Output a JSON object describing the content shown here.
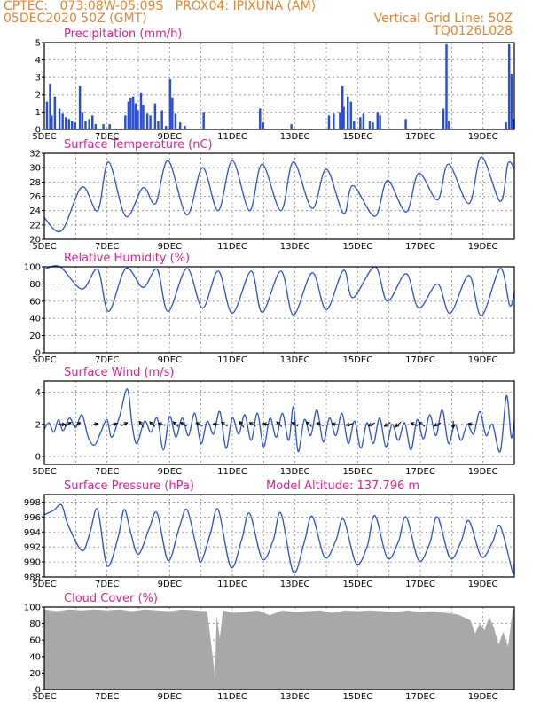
{
  "header": {
    "line1": "CPTEC:   073:08W-05:09S   PROX04: IPIXUNA (AM)",
    "line2": "05DEC2020 50Z (GMT)",
    "grid_line": "Vertical Grid Line: 50Z",
    "code": "TQ0126L028"
  },
  "x_dates": [
    "5DEC",
    "7DEC",
    "9DEC",
    "11DEC",
    "13DEC",
    "15DEC",
    "17DEC",
    "19DEC"
  ],
  "colors": {
    "line": "#2a4fd6",
    "bar": "#2a4fd6",
    "cloud": "#a8a8a8",
    "title": "#e0208c",
    "header": "#e8822c"
  },
  "chart_data": [
    {
      "type": "bar",
      "title": "Precipitation (mm/h)",
      "ylim": [
        0,
        5
      ],
      "yticks": [
        0,
        1,
        2,
        3,
        4,
        5
      ],
      "x_range_days": [
        5,
        20
      ],
      "bars": [
        [
          5.05,
          1.6
        ],
        [
          5.15,
          2.6
        ],
        [
          5.2,
          0.8
        ],
        [
          5.3,
          1.9
        ],
        [
          5.45,
          1.2
        ],
        [
          5.55,
          0.9
        ],
        [
          5.65,
          0.7
        ],
        [
          5.75,
          0.6
        ],
        [
          5.85,
          0.5
        ],
        [
          5.95,
          0.4
        ],
        [
          6.1,
          2.5
        ],
        [
          6.18,
          1.0
        ],
        [
          6.28,
          0.5
        ],
        [
          6.4,
          0.6
        ],
        [
          6.5,
          0.8
        ],
        [
          6.6,
          0.3
        ],
        [
          6.85,
          0.3
        ],
        [
          7.05,
          0.3
        ],
        [
          7.55,
          0.8
        ],
        [
          7.65,
          1.6
        ],
        [
          7.72,
          1.8
        ],
        [
          7.8,
          1.9
        ],
        [
          7.88,
          1.5
        ],
        [
          7.95,
          1.1
        ],
        [
          8.05,
          2.1
        ],
        [
          8.12,
          1.4
        ],
        [
          8.25,
          0.9
        ],
        [
          8.35,
          0.8
        ],
        [
          8.5,
          1.5
        ],
        [
          8.6,
          0.5
        ],
        [
          8.72,
          1.1
        ],
        [
          8.85,
          0.2
        ],
        [
          8.98,
          2.9
        ],
        [
          9.05,
          1.8
        ],
        [
          9.15,
          0.9
        ],
        [
          9.3,
          0.4
        ],
        [
          9.45,
          0.2
        ],
        [
          10.05,
          1.0
        ],
        [
          11.85,
          1.2
        ],
        [
          11.95,
          0.4
        ],
        [
          12.85,
          0.3
        ],
        [
          14.05,
          0.8
        ],
        [
          14.2,
          0.9
        ],
        [
          14.4,
          1.0
        ],
        [
          14.48,
          2.5
        ],
        [
          14.52,
          1.3
        ],
        [
          14.65,
          1.9
        ],
        [
          14.75,
          1.6
        ],
        [
          14.85,
          0.5
        ],
        [
          15.05,
          0.7
        ],
        [
          15.15,
          0.9
        ],
        [
          15.35,
          0.5
        ],
        [
          15.45,
          0.4
        ],
        [
          15.6,
          1.0
        ],
        [
          15.68,
          0.8
        ],
        [
          16.5,
          0.6
        ],
        [
          17.7,
          1.2
        ],
        [
          17.8,
          4.9
        ],
        [
          17.88,
          0.5
        ],
        [
          19.7,
          0.4
        ],
        [
          19.8,
          4.9
        ],
        [
          19.88,
          3.2
        ],
        [
          19.95,
          0.6
        ]
      ]
    },
    {
      "type": "line",
      "title": "Surface Temperature (nC)",
      "ylim": [
        20,
        32
      ],
      "yticks": [
        20,
        22,
        24,
        26,
        28,
        30,
        32
      ],
      "peaks": [
        [
          5.0,
          23.0
        ],
        [
          5.55,
          21.2
        ],
        [
          6.2,
          27.3
        ],
        [
          6.7,
          24.0
        ],
        [
          7.05,
          30.8
        ],
        [
          7.6,
          23.2
        ],
        [
          8.15,
          27.2
        ],
        [
          8.55,
          25.0
        ],
        [
          8.95,
          31.0
        ],
        [
          9.55,
          23.4
        ],
        [
          10.05,
          30.0
        ],
        [
          10.55,
          24.0
        ],
        [
          11.0,
          31.0
        ],
        [
          11.55,
          24.0
        ],
        [
          11.95,
          30.5
        ],
        [
          12.55,
          24.0
        ],
        [
          12.95,
          30.8
        ],
        [
          13.55,
          24.3
        ],
        [
          14.0,
          29.8
        ],
        [
          14.55,
          23.6
        ],
        [
          14.85,
          27.5
        ],
        [
          15.55,
          23.2
        ],
        [
          15.95,
          28.2
        ],
        [
          16.55,
          23.8
        ],
        [
          16.95,
          29.2
        ],
        [
          17.55,
          25.5
        ],
        [
          17.9,
          30.5
        ],
        [
          18.55,
          25.0
        ],
        [
          18.95,
          31.5
        ],
        [
          19.55,
          25.3
        ],
        [
          19.8,
          30.6
        ],
        [
          20.0,
          29.8
        ]
      ]
    },
    {
      "type": "line",
      "title": "Relative Humidity (%)",
      "ylim": [
        0,
        100
      ],
      "yticks": [
        0,
        20,
        40,
        60,
        80,
        100
      ],
      "peaks": [
        [
          5.0,
          97
        ],
        [
          5.5,
          100
        ],
        [
          6.2,
          74
        ],
        [
          6.7,
          97
        ],
        [
          7.05,
          48
        ],
        [
          7.6,
          98
        ],
        [
          8.15,
          76
        ],
        [
          8.6,
          97
        ],
        [
          8.95,
          48
        ],
        [
          9.55,
          98
        ],
        [
          10.05,
          52
        ],
        [
          10.55,
          95
        ],
        [
          11.0,
          46
        ],
        [
          11.6,
          95
        ],
        [
          11.95,
          47
        ],
        [
          12.55,
          95
        ],
        [
          12.95,
          44
        ],
        [
          13.55,
          93
        ],
        [
          14.0,
          50
        ],
        [
          14.55,
          96
        ],
        [
          14.85,
          64
        ],
        [
          15.55,
          100
        ],
        [
          15.95,
          60
        ],
        [
          16.55,
          92
        ],
        [
          16.95,
          52
        ],
        [
          17.55,
          80
        ],
        [
          17.95,
          46
        ],
        [
          18.55,
          90
        ],
        [
          18.95,
          43
        ],
        [
          19.55,
          98
        ],
        [
          19.85,
          55
        ],
        [
          20.0,
          70
        ]
      ]
    },
    {
      "type": "line",
      "title": "Surface Wind (m/s)",
      "ylim": [
        -0.5,
        4.7
      ],
      "yticks": [
        0,
        2,
        4
      ],
      "peaks": [
        [
          5.0,
          1.7
        ],
        [
          5.15,
          2.1
        ],
        [
          5.3,
          1.5
        ],
        [
          5.45,
          2.3
        ],
        [
          5.6,
          1.6
        ],
        [
          5.8,
          2.4
        ],
        [
          6.0,
          1.8
        ],
        [
          6.2,
          2.6
        ],
        [
          6.4,
          1.2
        ],
        [
          6.6,
          0.7
        ],
        [
          6.8,
          1.5
        ],
        [
          7.0,
          2.3
        ],
        [
          7.15,
          1.2
        ],
        [
          7.4,
          2.5
        ],
        [
          7.65,
          4.2
        ],
        [
          7.8,
          2.0
        ],
        [
          7.95,
          0.8
        ],
        [
          8.2,
          2.2
        ],
        [
          8.4,
          1.5
        ],
        [
          8.6,
          2.4
        ],
        [
          8.8,
          0.4
        ],
        [
          9.0,
          2.5
        ],
        [
          9.2,
          1.2
        ],
        [
          9.4,
          2.4
        ],
        [
          9.6,
          1.3
        ],
        [
          9.8,
          2.7
        ],
        [
          10.0,
          0.8
        ],
        [
          10.2,
          2.2
        ],
        [
          10.4,
          1.4
        ],
        [
          10.6,
          2.8
        ],
        [
          10.8,
          0.5
        ],
        [
          11.0,
          2.4
        ],
        [
          11.2,
          1.4
        ],
        [
          11.4,
          2.6
        ],
        [
          11.6,
          1.0
        ],
        [
          11.8,
          2.7
        ],
        [
          12.0,
          0.6
        ],
        [
          12.2,
          2.4
        ],
        [
          12.4,
          1.2
        ],
        [
          12.6,
          2.7
        ],
        [
          12.8,
          1.0
        ],
        [
          12.95,
          3.1
        ],
        [
          13.1,
          0.3
        ],
        [
          13.3,
          2.3
        ],
        [
          13.5,
          1.3
        ],
        [
          13.7,
          2.9
        ],
        [
          13.9,
          0.9
        ],
        [
          14.1,
          2.4
        ],
        [
          14.3,
          1.3
        ],
        [
          14.5,
          2.7
        ],
        [
          14.7,
          0.8
        ],
        [
          14.9,
          2.2
        ],
        [
          15.1,
          0.5
        ],
        [
          15.3,
          2.1
        ],
        [
          15.5,
          0.8
        ],
        [
          15.7,
          2.4
        ],
        [
          15.9,
          0.6
        ],
        [
          16.1,
          2.0
        ],
        [
          16.3,
          1.0
        ],
        [
          16.5,
          2.1
        ],
        [
          16.7,
          0.4
        ],
        [
          16.9,
          2.3
        ],
        [
          17.1,
          1.1
        ],
        [
          17.3,
          2.6
        ],
        [
          17.5,
          1.3
        ],
        [
          17.7,
          2.9
        ],
        [
          17.9,
          0.8
        ],
        [
          18.1,
          2.0
        ],
        [
          18.3,
          1.0
        ],
        [
          18.5,
          2.0
        ],
        [
          18.7,
          1.4
        ],
        [
          18.9,
          2.8
        ],
        [
          19.1,
          1.3
        ],
        [
          19.3,
          2.0
        ],
        [
          19.55,
          0.3
        ],
        [
          19.75,
          3.8
        ],
        [
          19.9,
          1.2
        ],
        [
          20.0,
          2.2
        ]
      ],
      "arrows": [
        [
          5.55,
          0.0
        ],
        [
          5.75,
          0.55
        ],
        [
          6.05,
          0.5
        ],
        [
          6.6,
          0.3
        ],
        [
          7.2,
          0.3
        ],
        [
          7.55,
          0.5
        ],
        [
          8.1,
          2.2
        ],
        [
          8.45,
          2.4
        ],
        [
          8.75,
          2.8
        ],
        [
          9.2,
          2.4
        ],
        [
          9.45,
          2.6
        ],
        [
          9.95,
          2.7
        ],
        [
          10.5,
          3.0
        ],
        [
          10.75,
          2.6
        ],
        [
          11.3,
          2.2
        ],
        [
          11.65,
          2.6
        ],
        [
          12.1,
          2.9
        ],
        [
          12.5,
          2.4
        ],
        [
          13.0,
          2.6
        ],
        [
          13.45,
          2.4
        ],
        [
          13.8,
          2.7
        ],
        [
          14.3,
          2.9
        ],
        [
          14.75,
          3.4
        ],
        [
          15.45,
          3.6
        ],
        [
          15.95,
          3.7
        ],
        [
          16.3,
          3.9
        ],
        [
          16.8,
          2.7
        ],
        [
          17.05,
          2.5
        ],
        [
          17.55,
          3.6
        ],
        [
          18.05,
          4.7
        ],
        [
          18.65,
          2.9
        ]
      ]
    },
    {
      "type": "line",
      "title": "Surface Pressure (hPa)",
      "subtitle": "Model Altitude: 137.796 m",
      "ylim": [
        988,
        999
      ],
      "yticks": [
        988,
        990,
        992,
        994,
        996,
        998
      ],
      "peaks": [
        [
          5.0,
          996.3
        ],
        [
          5.3,
          996.9
        ],
        [
          5.55,
          997.6
        ],
        [
          5.75,
          995.0
        ],
        [
          6.2,
          991.5
        ],
        [
          6.45,
          993.8
        ],
        [
          6.7,
          997.0
        ],
        [
          7.0,
          989.5
        ],
        [
          7.35,
          993.2
        ],
        [
          7.55,
          997.0
        ],
        [
          7.75,
          994.0
        ],
        [
          8.0,
          991.0
        ],
        [
          8.35,
          994.5
        ],
        [
          8.6,
          996.5
        ],
        [
          8.95,
          990.2
        ],
        [
          9.3,
          994.5
        ],
        [
          9.55,
          997.0
        ],
        [
          9.85,
          992.0
        ],
        [
          10.0,
          990.0
        ],
        [
          10.3,
          993.8
        ],
        [
          10.55,
          997.0
        ],
        [
          10.95,
          989.3
        ],
        [
          11.3,
          993.0
        ],
        [
          11.55,
          996.5
        ],
        [
          11.95,
          990.4
        ],
        [
          12.3,
          992.8
        ],
        [
          12.55,
          996.5
        ],
        [
          12.95,
          988.6
        ],
        [
          13.3,
          992.7
        ],
        [
          13.55,
          996.1
        ],
        [
          13.95,
          990.6
        ],
        [
          14.3,
          992.8
        ],
        [
          14.55,
          995.7
        ],
        [
          14.95,
          989.8
        ],
        [
          15.3,
          992.0
        ],
        [
          15.55,
          996.2
        ],
        [
          15.95,
          990.5
        ],
        [
          16.3,
          992.7
        ],
        [
          16.55,
          996.0
        ],
        [
          16.95,
          990.2
        ],
        [
          17.3,
          992.5
        ],
        [
          17.55,
          996.0
        ],
        [
          17.95,
          990.5
        ],
        [
          18.3,
          992.7
        ],
        [
          18.55,
          995.5
        ],
        [
          18.95,
          990.7
        ],
        [
          19.3,
          992.6
        ],
        [
          19.55,
          994.8
        ],
        [
          19.95,
          988.6
        ],
        [
          20.0,
          989.8
        ]
      ]
    },
    {
      "type": "area",
      "title": "Cloud Cover (%)",
      "ylim": [
        0,
        100
      ],
      "yticks": [
        0,
        20,
        40,
        60,
        80,
        100
      ],
      "steps": [
        [
          5.0,
          97
        ],
        [
          5.4,
          95
        ],
        [
          5.8,
          97
        ],
        [
          6.2,
          96
        ],
        [
          6.6,
          97
        ],
        [
          7.0,
          96
        ],
        [
          7.4,
          97
        ],
        [
          7.8,
          95
        ],
        [
          8.2,
          97
        ],
        [
          8.6,
          96
        ],
        [
          9.0,
          95
        ],
        [
          9.4,
          97
        ],
        [
          9.8,
          96
        ],
        [
          10.2,
          95
        ],
        [
          10.45,
          15
        ],
        [
          10.5,
          90
        ],
        [
          10.6,
          62
        ],
        [
          10.7,
          96
        ],
        [
          11.0,
          93
        ],
        [
          11.4,
          94
        ],
        [
          11.8,
          96
        ],
        [
          12.2,
          90
        ],
        [
          12.6,
          96
        ],
        [
          13.0,
          94
        ],
        [
          13.4,
          95
        ],
        [
          13.8,
          96
        ],
        [
          14.2,
          93
        ],
        [
          14.6,
          96
        ],
        [
          15.0,
          95
        ],
        [
          15.4,
          96
        ],
        [
          15.8,
          95
        ],
        [
          16.2,
          94
        ],
        [
          16.6,
          96
        ],
        [
          17.0,
          94
        ],
        [
          17.4,
          95
        ],
        [
          17.8,
          93
        ],
        [
          18.2,
          91
        ],
        [
          18.6,
          84
        ],
        [
          18.75,
          68
        ],
        [
          18.9,
          80
        ],
        [
          19.05,
          72
        ],
        [
          19.2,
          88
        ],
        [
          19.35,
          75
        ],
        [
          19.5,
          55
        ],
        [
          19.65,
          70
        ],
        [
          19.8,
          52
        ],
        [
          19.95,
          97
        ],
        [
          20.0,
          97
        ]
      ]
    }
  ]
}
